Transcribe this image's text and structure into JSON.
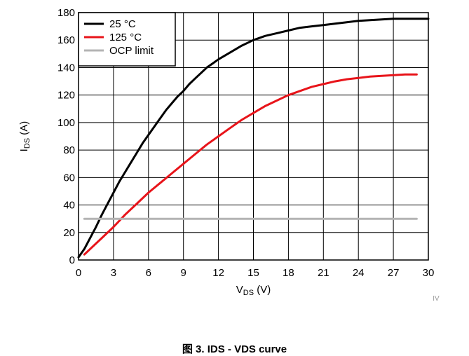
{
  "caption": "图 3. IDS - VDS curve",
  "watermark": "IV",
  "chart_data": {
    "type": "line",
    "xlabel": {
      "main": "V",
      "sub": "DS",
      "unit": " (V)"
    },
    "ylabel": {
      "main": "I",
      "sub": "DS",
      "unit": " (A)"
    },
    "xlim": [
      0,
      30
    ],
    "ylim": [
      0,
      180
    ],
    "xticks": [
      0,
      3,
      6,
      9,
      12,
      15,
      18,
      21,
      24,
      27,
      30
    ],
    "yticks": [
      0,
      20,
      40,
      60,
      80,
      100,
      120,
      140,
      160,
      180
    ],
    "grid": true,
    "legend_position": "top-left",
    "series": [
      {
        "name": "25 °C",
        "color": "#000000",
        "x": [
          0,
          0.5,
          1,
          1.5,
          2,
          2.5,
          3,
          3.5,
          4,
          4.5,
          5,
          5.5,
          6,
          6.5,
          7,
          7.5,
          8,
          8.5,
          9,
          9.5,
          10,
          10.5,
          11,
          11.5,
          12,
          13,
          14,
          15,
          16,
          17,
          18,
          19,
          20,
          21,
          22,
          23,
          24,
          25,
          26,
          27,
          28,
          29,
          30
        ],
        "y": [
          2,
          8,
          16,
          24,
          33,
          41,
          49,
          57,
          64,
          71,
          78,
          85,
          91,
          97,
          103,
          109,
          114,
          119,
          123,
          128,
          132,
          136,
          140,
          143,
          146,
          151,
          156,
          160,
          163,
          165,
          167,
          169,
          170,
          171,
          172,
          173,
          174,
          174.5,
          175,
          175.5,
          175.5,
          175.5,
          175.5
        ]
      },
      {
        "name": "125 °C",
        "color": "#e8141a",
        "x": [
          0.5,
          1,
          1.5,
          2,
          3,
          4,
          5,
          6,
          7,
          8,
          9,
          10,
          11,
          12,
          13,
          14,
          15,
          16,
          17,
          18,
          19,
          20,
          21,
          22,
          23,
          24,
          25,
          26,
          27,
          28,
          29
        ],
        "y": [
          4,
          8,
          12,
          16,
          24,
          33,
          41,
          49,
          56,
          63,
          70,
          77,
          84,
          90,
          96,
          102,
          107,
          112,
          116,
          120,
          123,
          126,
          128,
          130,
          131.5,
          132.5,
          133.5,
          134,
          134.5,
          135,
          135
        ]
      },
      {
        "name": "OCP limit",
        "color": "#b4b4b4",
        "x": [
          0.5,
          29
        ],
        "y": [
          30,
          30
        ]
      }
    ]
  }
}
